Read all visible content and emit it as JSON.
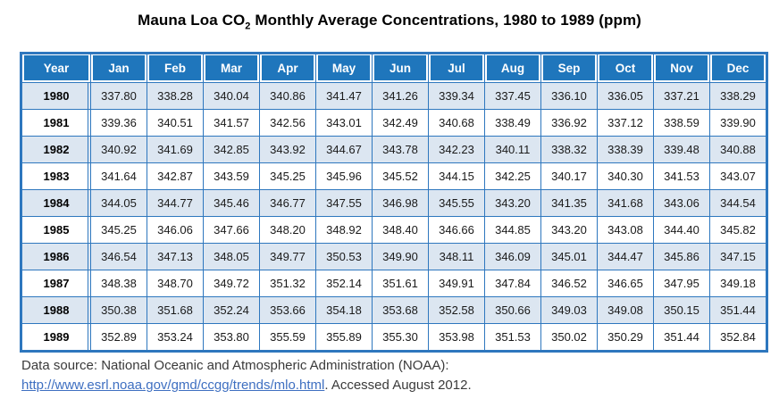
{
  "title": {
    "prefix": "Mauna Loa CO",
    "subscript": "2",
    "suffix": " Monthly Average Concentrations, 1980 to 1989 (ppm)"
  },
  "table": {
    "columns": [
      "Year",
      "Jan",
      "Feb",
      "Mar",
      "Apr",
      "May",
      "Jun",
      "Jul",
      "Aug",
      "Sep",
      "Oct",
      "Nov",
      "Dec"
    ],
    "rows": [
      {
        "year": "1980",
        "values": [
          "337.80",
          "338.28",
          "340.04",
          "340.86",
          "341.47",
          "341.26",
          "339.34",
          "337.45",
          "336.10",
          "336.05",
          "337.21",
          "338.29"
        ]
      },
      {
        "year": "1981",
        "values": [
          "339.36",
          "340.51",
          "341.57",
          "342.56",
          "343.01",
          "342.49",
          "340.68",
          "338.49",
          "336.92",
          "337.12",
          "338.59",
          "339.90"
        ]
      },
      {
        "year": "1982",
        "values": [
          "340.92",
          "341.69",
          "342.85",
          "343.92",
          "344.67",
          "343.78",
          "342.23",
          "340.11",
          "338.32",
          "338.39",
          "339.48",
          "340.88"
        ]
      },
      {
        "year": "1983",
        "values": [
          "341.64",
          "342.87",
          "343.59",
          "345.25",
          "345.96",
          "345.52",
          "344.15",
          "342.25",
          "340.17",
          "340.30",
          "341.53",
          "343.07"
        ]
      },
      {
        "year": "1984",
        "values": [
          "344.05",
          "344.77",
          "345.46",
          "346.77",
          "347.55",
          "346.98",
          "345.55",
          "343.20",
          "341.35",
          "341.68",
          "343.06",
          "344.54"
        ]
      },
      {
        "year": "1985",
        "values": [
          "345.25",
          "346.06",
          "347.66",
          "348.20",
          "348.92",
          "348.40",
          "346.66",
          "344.85",
          "343.20",
          "343.08",
          "344.40",
          "345.82"
        ]
      },
      {
        "year": "1986",
        "values": [
          "346.54",
          "347.13",
          "348.05",
          "349.77",
          "350.53",
          "349.90",
          "348.11",
          "346.09",
          "345.01",
          "344.47",
          "345.86",
          "347.15"
        ]
      },
      {
        "year": "1987",
        "values": [
          "348.38",
          "348.70",
          "349.72",
          "351.32",
          "352.14",
          "351.61",
          "349.91",
          "347.84",
          "346.52",
          "346.65",
          "347.95",
          "349.18"
        ]
      },
      {
        "year": "1988",
        "values": [
          "350.38",
          "351.68",
          "352.24",
          "353.66",
          "354.18",
          "353.68",
          "352.58",
          "350.66",
          "349.03",
          "349.08",
          "350.15",
          "351.44"
        ]
      },
      {
        "year": "1989",
        "values": [
          "352.89",
          "353.24",
          "353.80",
          "355.59",
          "355.89",
          "355.30",
          "353.98",
          "351.53",
          "350.02",
          "350.29",
          "351.44",
          "352.84"
        ]
      }
    ]
  },
  "footer": {
    "line1": "Data source: National Oceanic and Atmospheric Administration (NOAA):",
    "link": "http://www.esrl.noaa.gov/gmd/ccgg/trends/mlo.html",
    "after_link": ". Accessed August 2012."
  },
  "colors": {
    "header_bg": "#1F76BC",
    "grid": "#2E77BE",
    "row_alt_bg": "#DCE6F1",
    "row_bg": "#FFFFFF",
    "link": "#3E6FC1"
  }
}
